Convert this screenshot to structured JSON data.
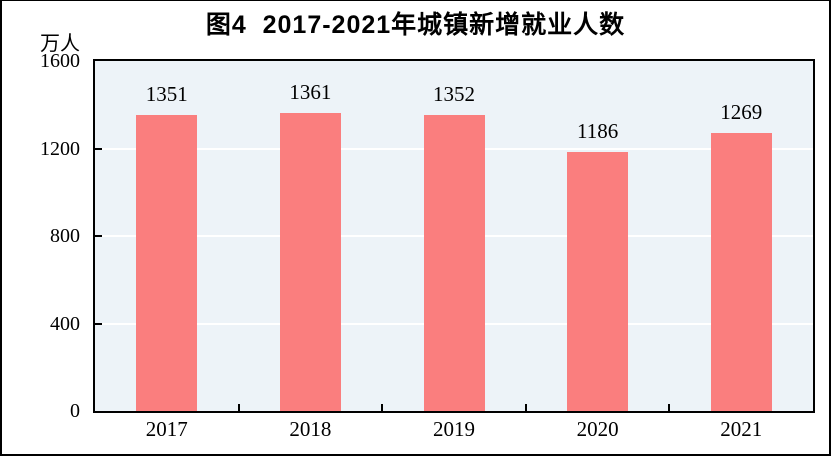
{
  "figure": {
    "outer_border_color": "#000000",
    "background_color": "#FFFFFF"
  },
  "chart_data": {
    "type": "bar",
    "title": "图4  2017-2021年城镇新增就业人数",
    "ylabel": "万人",
    "xlabel": "",
    "categories": [
      "2017",
      "2018",
      "2019",
      "2020",
      "2021"
    ],
    "values": [
      1351,
      1361,
      1352,
      1186,
      1269
    ],
    "data_labels": [
      "1351",
      "1361",
      "1352",
      "1186",
      "1269"
    ],
    "ylim": [
      0,
      1600
    ],
    "yticks": [
      0,
      400,
      800,
      1200,
      1600
    ],
    "gridline_values": [
      400,
      800,
      1200
    ],
    "gridline_color": "#FFFFFF",
    "legend": "none",
    "bar_color": "#FA7E7E",
    "plot_bg_color": "#EDF3F8",
    "axis_color": "#000000",
    "text_color": "#000000"
  }
}
